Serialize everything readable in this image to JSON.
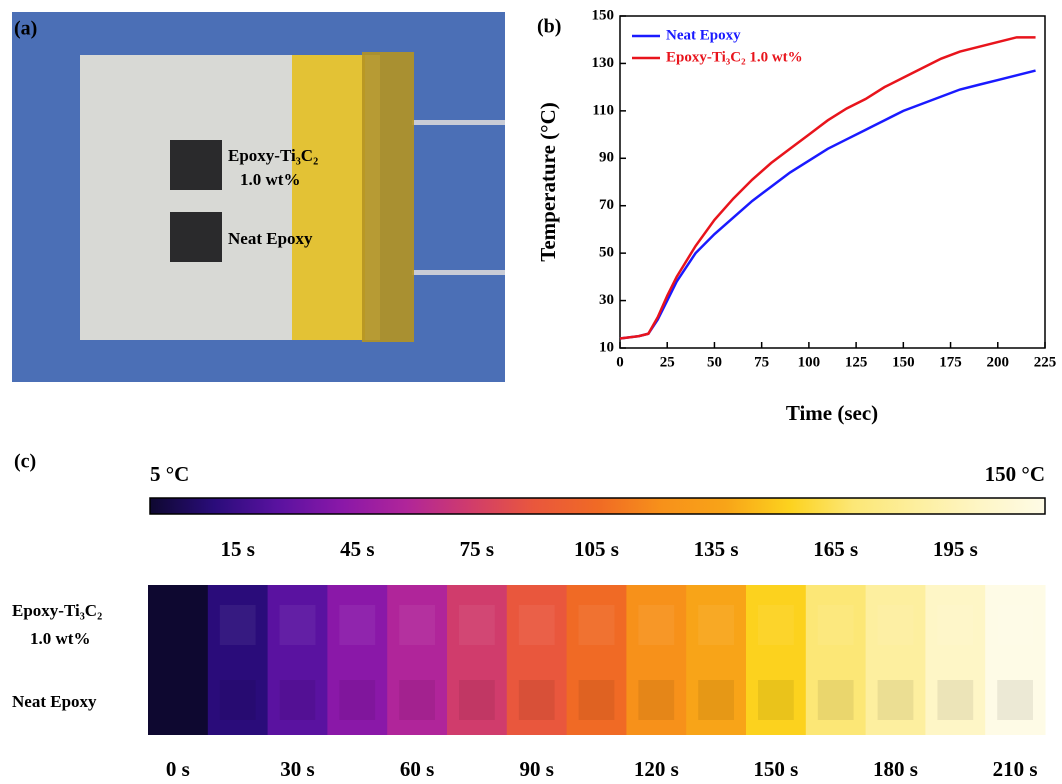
{
  "chart_data": {
    "type": "line",
    "panel_label": "(b)",
    "x_label": "Time (sec)",
    "y_label": "Temperature (°C)",
    "x": [
      0,
      10,
      15,
      20,
      25,
      30,
      40,
      50,
      60,
      70,
      80,
      90,
      100,
      110,
      120,
      130,
      140,
      150,
      160,
      170,
      180,
      190,
      200,
      210,
      220
    ],
    "series": [
      {
        "name": "Neat Epoxy",
        "color": "#1a1aff",
        "values": [
          14,
          15,
          16,
          22,
          30,
          38,
          50,
          58,
          65,
          72,
          78,
          84,
          89,
          94,
          98,
          102,
          106,
          110,
          113,
          116,
          119,
          121,
          123,
          125,
          127
        ]
      },
      {
        "name": "Epoxy-Ti₃C₂ 1.0 wt%",
        "color": "#e8141c",
        "values": [
          14,
          15,
          16,
          23,
          32,
          40,
          53,
          64,
          73,
          81,
          88,
          94,
          100,
          106,
          111,
          115,
          120,
          124,
          128,
          132,
          135,
          137,
          139,
          141,
          141
        ]
      }
    ],
    "xlim": [
      0,
      225
    ],
    "xticks": [
      0,
      25,
      50,
      75,
      100,
      125,
      150,
      175,
      200,
      225
    ],
    "ylim": [
      10,
      150
    ],
    "yticks": [
      10,
      30,
      50,
      70,
      90,
      110,
      130,
      150
    ],
    "legend": "upper-left"
  },
  "photo": {
    "panel_label": "(a)",
    "label_top": [
      "Epoxy-Ti₃C₂",
      "1.0 wt%"
    ],
    "label_bottom": "Neat Epoxy"
  },
  "thermal": {
    "panel_label": "(c)",
    "scale_min": "5 °C",
    "scale_max": "150 °C",
    "top_times": [
      "15 s",
      "45 s",
      "75 s",
      "105 s",
      "135 s",
      "165 s",
      "195 s"
    ],
    "bottom_times": [
      "0 s",
      "30 s",
      "60 s",
      "90 s",
      "120 s",
      "150 s",
      "180 s",
      "210 s"
    ],
    "row_labels": [
      [
        "Epoxy-Ti₃C₂",
        "1.0 wt%"
      ],
      "Neat Epoxy"
    ],
    "cell_colors": [
      "#0e0830",
      "#2a0c7a",
      "#5a12a0",
      "#8a18a8",
      "#b0259a",
      "#d03c6c",
      "#e9573d",
      "#f06a25",
      "#f7911a",
      "#f8a418",
      "#fcd21e",
      "#fce776",
      "#fdef9f",
      "#fef6c6",
      "#fefbe6"
    ]
  }
}
